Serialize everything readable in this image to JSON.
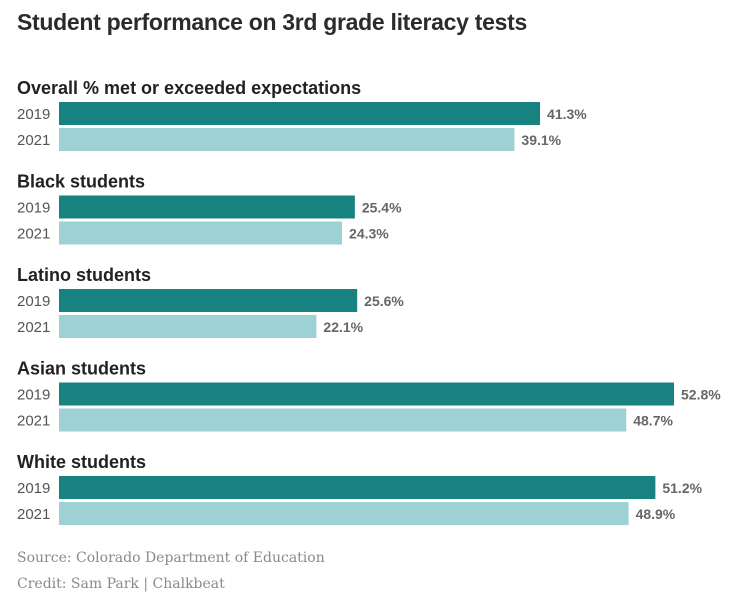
{
  "title": "Student performance on 3rd grade literacy tests",
  "chart_data": {
    "type": "bar",
    "orientation": "horizontal",
    "unit": "%",
    "xlim": [
      0,
      55
    ],
    "grid": false,
    "colors": {
      "2019": "#17827f",
      "2021": "#9ed1d3"
    },
    "groups": [
      {
        "label": "Overall % met or exceeded expectations",
        "bars": [
          {
            "year": "2019",
            "value": 41.3,
            "label": "41.3%"
          },
          {
            "year": "2021",
            "value": 39.1,
            "label": "39.1%"
          }
        ]
      },
      {
        "label": "Black students",
        "bars": [
          {
            "year": "2019",
            "value": 25.4,
            "label": "25.4%"
          },
          {
            "year": "2021",
            "value": 24.3,
            "label": "24.3%"
          }
        ]
      },
      {
        "label": "Latino students",
        "bars": [
          {
            "year": "2019",
            "value": 25.6,
            "label": "25.6%"
          },
          {
            "year": "2021",
            "value": 22.1,
            "label": "22.1%"
          }
        ]
      },
      {
        "label": "Asian students",
        "bars": [
          {
            "year": "2019",
            "value": 52.8,
            "label": "52.8%"
          },
          {
            "year": "2021",
            "value": 48.7,
            "label": "48.7%"
          }
        ]
      },
      {
        "label": "White students",
        "bars": [
          {
            "year": "2019",
            "value": 51.2,
            "label": "51.2%"
          },
          {
            "year": "2021",
            "value": 48.9,
            "label": "48.9%"
          }
        ]
      }
    ]
  },
  "footer": {
    "source": "Source: Colorado Department of Education",
    "credit": "Credit: Sam Park | Chalkbeat"
  }
}
